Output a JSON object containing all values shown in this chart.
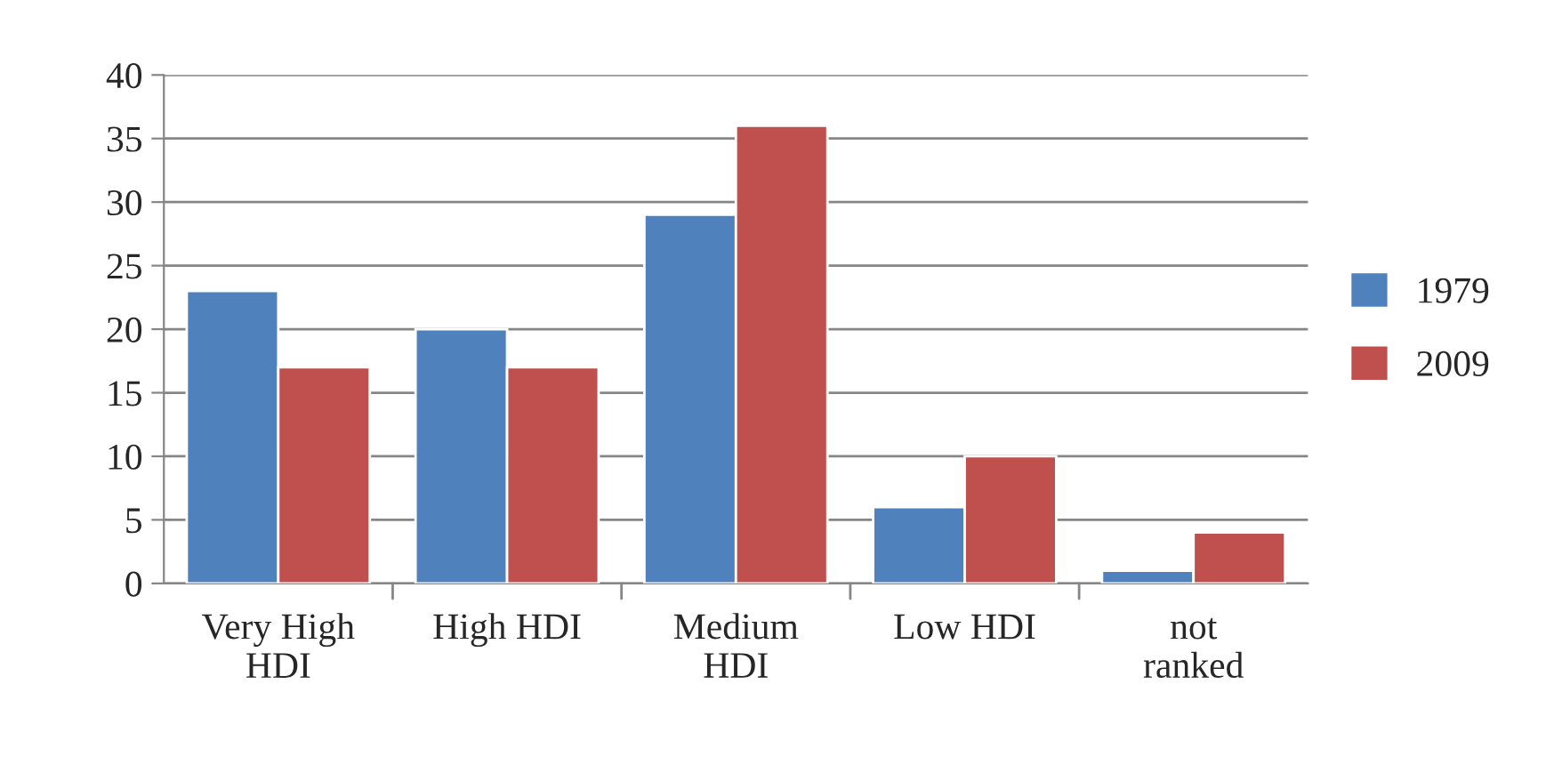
{
  "chart_data": {
    "type": "bar",
    "categories": [
      "Very High\nHDI",
      "High HDI",
      "Medium\nHDI",
      "Low HDI",
      "not\nranked"
    ],
    "series": [
      {
        "name": "1979",
        "color": "#4f81bd",
        "values": [
          23,
          20,
          29,
          6,
          1
        ]
      },
      {
        "name": "2009",
        "color": "#c0504d",
        "values": [
          17,
          17,
          36,
          10,
          4
        ]
      }
    ],
    "ylim": [
      0,
      40
    ],
    "yticks": [
      0,
      5,
      10,
      15,
      20,
      25,
      30,
      35,
      40
    ],
    "grid": "y",
    "legend": "right"
  }
}
